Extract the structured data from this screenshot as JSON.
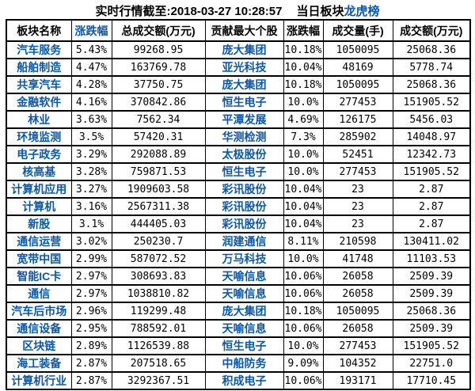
{
  "title": {
    "prefix": "实时行情截至:",
    "datetime": "2018-03-27 10:28:57",
    "board_label": "当日板块",
    "link": "龙虎榜"
  },
  "colors": {
    "accent_blue": "#0b57a8",
    "border": "#000000",
    "text": "#000000",
    "background": "#ffffff"
  },
  "table": {
    "headers": [
      {
        "label": "板块名称",
        "name": "sector-name",
        "blue": false,
        "interactable": false
      },
      {
        "label": "涨跌幅",
        "name": "sector-change",
        "blue": true,
        "interactable": true
      },
      {
        "label": "总成交额(万元)",
        "name": "sector-turnover",
        "blue": false,
        "interactable": false
      },
      {
        "label": "贡献最大个股",
        "name": "top-stock",
        "blue": false,
        "interactable": false
      },
      {
        "label": "涨跌幅",
        "name": "stock-change",
        "blue": false,
        "interactable": false
      },
      {
        "label": "成交量(手)",
        "name": "stock-volume",
        "blue": false,
        "interactable": false
      },
      {
        "label": "成交额(万元)",
        "name": "stock-turnover",
        "blue": false,
        "interactable": false
      }
    ],
    "rows": [
      [
        "汽车服务",
        "5.43%",
        "99268.95",
        "庞大集团",
        "10.18%",
        "1050095",
        "25068.36"
      ],
      [
        "船舶制造",
        "4.47%",
        "163769.78",
        "亚光科技",
        "10.04%",
        "48169",
        "5778.74"
      ],
      [
        "共享汽车",
        "4.28%",
        "37750.75",
        "庞大集团",
        "10.18%",
        "1050095",
        "25068.36"
      ],
      [
        "金融软件",
        "4.16%",
        "370842.86",
        "恒生电子",
        "10.0%",
        "277453",
        "151905.52"
      ],
      [
        "林业",
        "3.63%",
        "7562.34",
        "平潭发展",
        "4.69%",
        "126175",
        "5456.03"
      ],
      [
        "环境监测",
        "3.5%",
        "57420.31",
        "华测检测",
        "7.3%",
        "285902",
        "14048.97"
      ],
      [
        "电子政务",
        "3.29%",
        "292088.89",
        "太极股份",
        "10.0%",
        "52451",
        "12342.73"
      ],
      [
        "核高基",
        "3.28%",
        "759871.53",
        "恒生电子",
        "10.0%",
        "277453",
        "151905.52"
      ],
      [
        "计算机应用",
        "3.27%",
        "1909603.58",
        "彩讯股份",
        "10.04%",
        "23",
        "2.87"
      ],
      [
        "计算机",
        "3.16%",
        "2567311.38",
        "彩讯股份",
        "10.04%",
        "23",
        "2.87"
      ],
      [
        "新股",
        "3.1%",
        "444405.03",
        "彩讯股份",
        "10.04%",
        "23",
        "2.87"
      ],
      [
        "通信运营",
        "3.02%",
        "250230.7",
        "润建通信",
        "8.11%",
        "210598",
        "130411.02"
      ],
      [
        "宽带中国",
        "2.99%",
        "587072.52",
        "万马科技",
        "10.0%",
        "41748",
        "11103.53"
      ],
      [
        "智能IC卡",
        "2.97%",
        "308693.83",
        "天喻信息",
        "10.06%",
        "26058",
        "2509.39"
      ],
      [
        "通信",
        "2.97%",
        "1038810.82",
        "天喻信息",
        "10.06%",
        "26058",
        "2509.39"
      ],
      [
        "汽车后市场",
        "2.96%",
        "119299.48",
        "庞大集团",
        "10.18%",
        "1050095",
        "25068.36"
      ],
      [
        "通信设备",
        "2.95%",
        "788592.01",
        "天喻信息",
        "10.06%",
        "26058",
        "2509.39"
      ],
      [
        "区块链",
        "2.89%",
        "1126539.88",
        "恒生电子",
        "10.0%",
        "277453",
        "151905.52"
      ],
      [
        "海工装备",
        "2.87%",
        "207518.65",
        "中船防务",
        "9.09%",
        "104352",
        "22751.0"
      ],
      [
        "计算机行业",
        "2.87%",
        "3292367.51",
        "积成电子",
        "10.06%",
        "193171",
        "17710.45"
      ]
    ],
    "cell_names": [
      "sector-name-cell",
      "sector-change-cell",
      "sector-turnover-cell",
      "stock-name-cell",
      "stock-change-cell",
      "stock-volume-cell",
      "stock-turnover-cell"
    ]
  }
}
